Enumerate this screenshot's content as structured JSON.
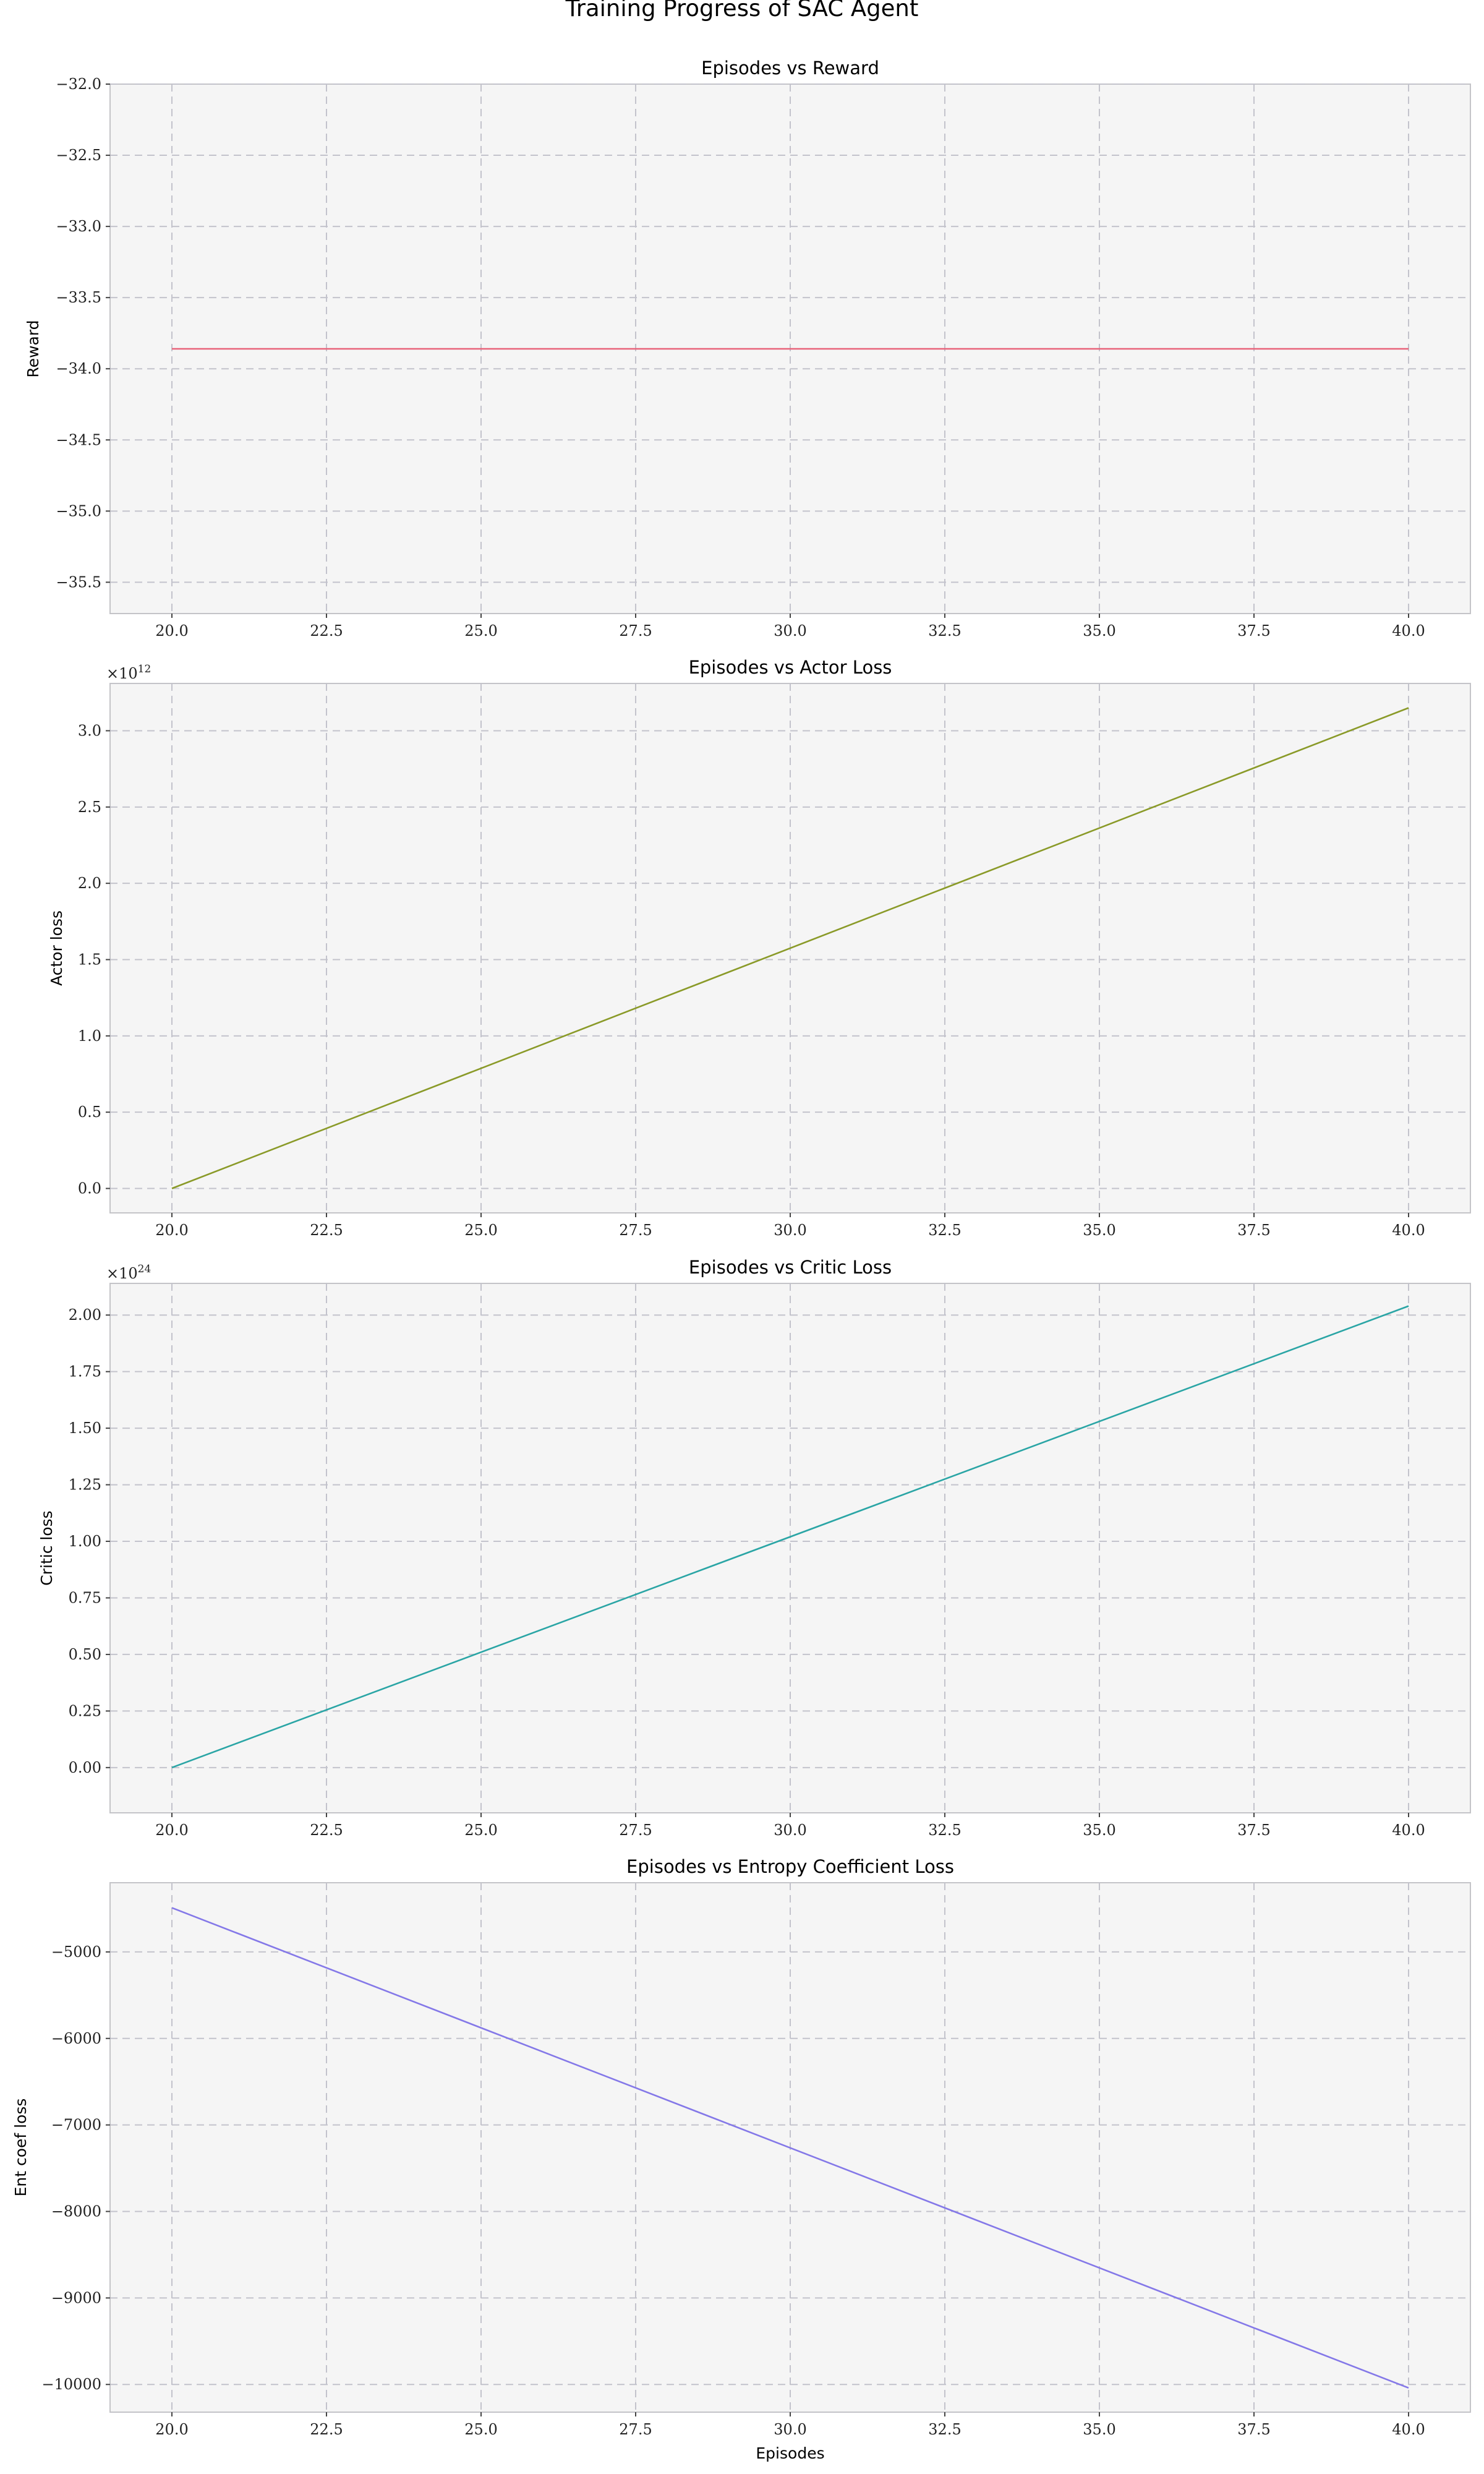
{
  "figure_title": "Training Progress of SAC Agent",
  "shared_xlabel": "Episodes",
  "chart_data": [
    {
      "type": "line",
      "title": "Episodes vs Reward",
      "xlabel": "",
      "ylabel": "Reward",
      "x": [
        20,
        40
      ],
      "series": [
        {
          "values": [
            -33.86,
            -33.86
          ],
          "color": "#e8637a"
        }
      ],
      "xlim": [
        19.0,
        41.0
      ],
      "ylim": [
        -35.72,
        -32.0
      ],
      "xticks": [
        20.0,
        22.5,
        25.0,
        27.5,
        30.0,
        32.5,
        35.0,
        37.5,
        40.0
      ],
      "yticks": [
        -32.0,
        -32.5,
        -33.0,
        -33.5,
        -34.0,
        -34.5,
        -35.0,
        -35.5
      ],
      "xtick_labels": [
        "20.0",
        "22.5",
        "25.0",
        "27.5",
        "30.0",
        "32.5",
        "35.0",
        "37.5",
        "40.0"
      ],
      "ytick_labels": [
        "−32.0",
        "−32.5",
        "−33.0",
        "−33.5",
        "−34.0",
        "−34.5",
        "−35.0",
        "−35.5"
      ],
      "y_multiplier": "",
      "grid": true
    },
    {
      "type": "line",
      "title": "Episodes vs Actor Loss",
      "xlabel": "",
      "ylabel": "Actor loss",
      "x": [
        20,
        40
      ],
      "series": [
        {
          "values": [
            0.0,
            3150000000000.0
          ],
          "color": "#8a9a28"
        }
      ],
      "xlim": [
        19.0,
        41.0
      ],
      "ylim": [
        -160000000000.0,
        3310000000000.0
      ],
      "xticks": [
        20.0,
        22.5,
        25.0,
        27.5,
        30.0,
        32.5,
        35.0,
        37.5,
        40.0
      ],
      "yticks": [
        0.0,
        500000000000.0,
        1000000000000.0,
        1500000000000.0,
        2000000000000.0,
        2500000000000.0,
        3000000000000.0
      ],
      "xtick_labels": [
        "20.0",
        "22.5",
        "25.0",
        "27.5",
        "30.0",
        "32.5",
        "35.0",
        "37.5",
        "40.0"
      ],
      "ytick_labels": [
        "0.0",
        "0.5",
        "1.0",
        "1.5",
        "2.0",
        "2.5",
        "3.0"
      ],
      "y_multiplier": {
        "base": "×10",
        "exp": "12"
      },
      "grid": true
    },
    {
      "type": "line",
      "title": "Episodes vs Critic Loss",
      "xlabel": "",
      "ylabel": "Critic loss",
      "x": [
        20,
        40
      ],
      "series": [
        {
          "values": [
            0.0,
            2.04e+24
          ],
          "color": "#2aa5a5"
        }
      ],
      "xlim": [
        19.0,
        41.0
      ],
      "ylim": [
        -2e+23,
        2.14e+24
      ],
      "xticks": [
        20.0,
        22.5,
        25.0,
        27.5,
        30.0,
        32.5,
        35.0,
        37.5,
        40.0
      ],
      "yticks": [
        0.0,
        2.5e+23,
        5e+23,
        7.5e+23,
        1e+24,
        1.25e+24,
        1.5e+24,
        1.75e+24,
        2e+24
      ],
      "xtick_labels": [
        "20.0",
        "22.5",
        "25.0",
        "27.5",
        "30.0",
        "32.5",
        "35.0",
        "37.5",
        "40.0"
      ],
      "ytick_labels": [
        "0.00",
        "0.25",
        "0.50",
        "0.75",
        "1.00",
        "1.25",
        "1.50",
        "1.75",
        "2.00"
      ],
      "y_multiplier": {
        "base": "×10",
        "exp": "24"
      },
      "grid": true
    },
    {
      "type": "line",
      "title": "Episodes vs Entropy Coefficient Loss",
      "xlabel": "Episodes",
      "ylabel": "Ent coef loss",
      "x": [
        20,
        40
      ],
      "series": [
        {
          "values": [
            -4490,
            -10040
          ],
          "color": "#8478e8"
        }
      ],
      "xlim": [
        19.0,
        41.0
      ],
      "ylim": [
        -10320,
        -4200
      ],
      "xticks": [
        20.0,
        22.5,
        25.0,
        27.5,
        30.0,
        32.5,
        35.0,
        37.5,
        40.0
      ],
      "yticks": [
        -5000,
        -6000,
        -7000,
        -8000,
        -9000,
        -10000
      ],
      "xtick_labels": [
        "20.0",
        "22.5",
        "25.0",
        "27.5",
        "30.0",
        "32.5",
        "35.0",
        "37.5",
        "40.0"
      ],
      "ytick_labels": [
        "−5000",
        "−6000",
        "−7000",
        "−8000",
        "−9000",
        "−10000"
      ],
      "y_multiplier": "",
      "grid": true
    }
  ]
}
